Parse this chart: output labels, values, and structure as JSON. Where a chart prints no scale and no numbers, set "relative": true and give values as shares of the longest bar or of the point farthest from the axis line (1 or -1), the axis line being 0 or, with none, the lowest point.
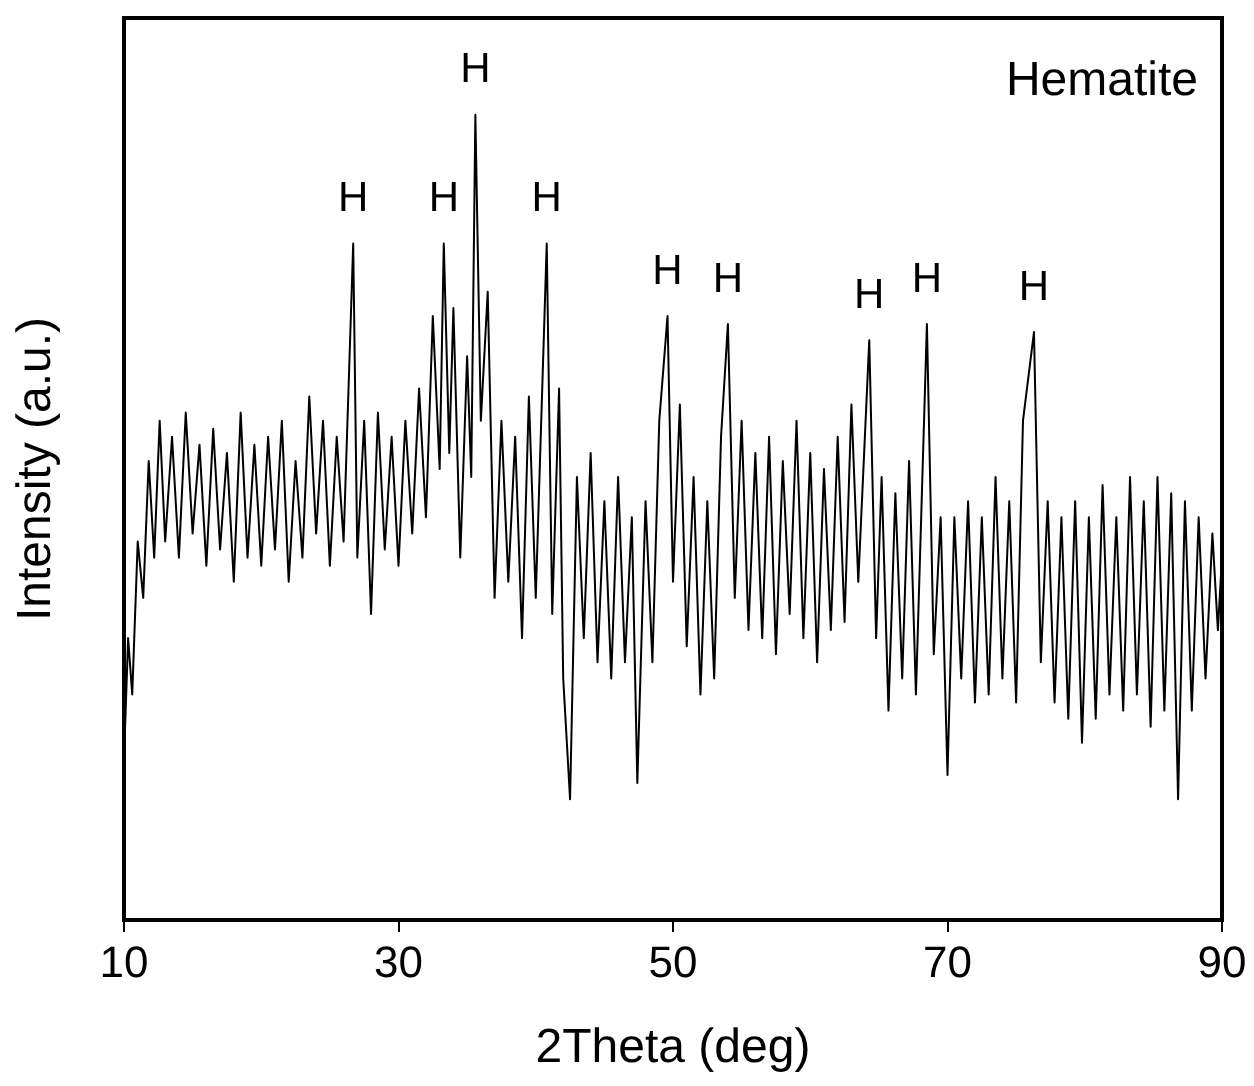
{
  "chart_data": {
    "type": "line",
    "relative": true,
    "xlabel": "2Theta (deg)",
    "ylabel": "Intensity (a.u.)",
    "xlim": [
      10,
      90
    ],
    "xticks": [
      10,
      30,
      50,
      70,
      90
    ],
    "grid": false,
    "legend": false,
    "marker": "none",
    "line_style": "solid",
    "series": [
      {
        "color": "#000000",
        "x": [
          10.0,
          10.3,
          10.6,
          11.0,
          11.4,
          11.8,
          12.2,
          12.6,
          13.0,
          13.5,
          14.0,
          14.5,
          15.0,
          15.5,
          16.0,
          16.5,
          17.0,
          17.5,
          18.0,
          18.5,
          19.0,
          19.5,
          20.0,
          20.5,
          21.0,
          21.5,
          22.0,
          22.5,
          23.0,
          23.5,
          24.0,
          24.5,
          25.0,
          25.5,
          26.0,
          26.7,
          27.0,
          27.5,
          28.0,
          28.5,
          29.0,
          29.5,
          30.0,
          30.5,
          31.0,
          31.5,
          32.0,
          32.5,
          33.0,
          33.3,
          33.7,
          34.0,
          34.5,
          35.0,
          35.3,
          35.6,
          36.0,
          36.5,
          37.0,
          37.5,
          38.0,
          38.5,
          39.0,
          39.5,
          40.0,
          40.8,
          41.2,
          41.7,
          42.0,
          42.5,
          43.0,
          43.5,
          44.0,
          44.5,
          45.0,
          45.5,
          46.0,
          46.5,
          47.0,
          47.4,
          48.0,
          48.5,
          49.0,
          49.6,
          50.0,
          50.5,
          51.0,
          51.5,
          52.0,
          52.5,
          53.0,
          53.5,
          54.0,
          54.5,
          55.0,
          55.5,
          56.0,
          56.5,
          57.0,
          57.5,
          58.0,
          58.5,
          59.0,
          59.5,
          60.0,
          60.5,
          61.0,
          61.5,
          62.0,
          62.5,
          63.0,
          63.5,
          64.3,
          64.8,
          65.2,
          65.7,
          66.2,
          66.7,
          67.2,
          67.7,
          68.5,
          69.0,
          69.5,
          70.0,
          70.5,
          71.0,
          71.5,
          72.0,
          72.5,
          73.0,
          73.5,
          74.0,
          74.5,
          75.0,
          75.5,
          76.3,
          76.8,
          77.3,
          77.8,
          78.3,
          78.8,
          79.3,
          79.8,
          80.3,
          80.8,
          81.3,
          81.8,
          82.3,
          82.8,
          83.3,
          83.8,
          84.3,
          84.8,
          85.3,
          85.8,
          86.3,
          86.8,
          87.3,
          87.8,
          88.3,
          88.8,
          89.3,
          89.7,
          90.0
        ],
        "values": [
          0.2,
          0.35,
          0.28,
          0.47,
          0.4,
          0.57,
          0.45,
          0.62,
          0.47,
          0.6,
          0.45,
          0.63,
          0.48,
          0.59,
          0.44,
          0.61,
          0.46,
          0.58,
          0.42,
          0.63,
          0.45,
          0.59,
          0.44,
          0.6,
          0.46,
          0.62,
          0.42,
          0.57,
          0.45,
          0.65,
          0.48,
          0.62,
          0.44,
          0.6,
          0.47,
          0.84,
          0.45,
          0.62,
          0.38,
          0.63,
          0.46,
          0.6,
          0.44,
          0.62,
          0.48,
          0.66,
          0.5,
          0.75,
          0.56,
          0.84,
          0.58,
          0.76,
          0.45,
          0.7,
          0.55,
          1.0,
          0.62,
          0.78,
          0.4,
          0.62,
          0.42,
          0.6,
          0.35,
          0.65,
          0.4,
          0.84,
          0.38,
          0.66,
          0.3,
          0.15,
          0.55,
          0.35,
          0.58,
          0.32,
          0.52,
          0.3,
          0.55,
          0.32,
          0.5,
          0.17,
          0.52,
          0.32,
          0.62,
          0.75,
          0.42,
          0.64,
          0.34,
          0.55,
          0.28,
          0.52,
          0.3,
          0.6,
          0.74,
          0.4,
          0.62,
          0.36,
          0.58,
          0.35,
          0.6,
          0.33,
          0.57,
          0.38,
          0.62,
          0.35,
          0.58,
          0.32,
          0.56,
          0.36,
          0.6,
          0.37,
          0.64,
          0.42,
          0.72,
          0.35,
          0.55,
          0.26,
          0.53,
          0.3,
          0.57,
          0.28,
          0.74,
          0.33,
          0.5,
          0.18,
          0.5,
          0.3,
          0.52,
          0.27,
          0.5,
          0.28,
          0.55,
          0.3,
          0.52,
          0.27,
          0.62,
          0.73,
          0.32,
          0.52,
          0.27,
          0.5,
          0.25,
          0.52,
          0.22,
          0.5,
          0.25,
          0.54,
          0.28,
          0.5,
          0.26,
          0.55,
          0.28,
          0.52,
          0.24,
          0.55,
          0.26,
          0.53,
          0.15,
          0.52,
          0.26,
          0.5,
          0.3,
          0.48,
          0.36,
          0.45
        ]
      }
    ],
    "annotations": [
      "Hematite",
      {
        "text": "H",
        "x": 26.7,
        "y": 0.84
      },
      {
        "text": "H",
        "x": 33.3,
        "y": 0.84
      },
      {
        "text": "H",
        "x": 35.6,
        "y": 1.0
      },
      {
        "text": "H",
        "x": 40.8,
        "y": 0.84
      },
      {
        "text": "H",
        "x": 49.6,
        "y": 0.75
      },
      {
        "text": "H",
        "x": 54.0,
        "y": 0.74
      },
      {
        "text": "H",
        "x": 64.3,
        "y": 0.72
      },
      {
        "text": "H",
        "x": 68.5,
        "y": 0.74
      },
      {
        "text": "H",
        "x": 76.3,
        "y": 0.73
      }
    ]
  }
}
